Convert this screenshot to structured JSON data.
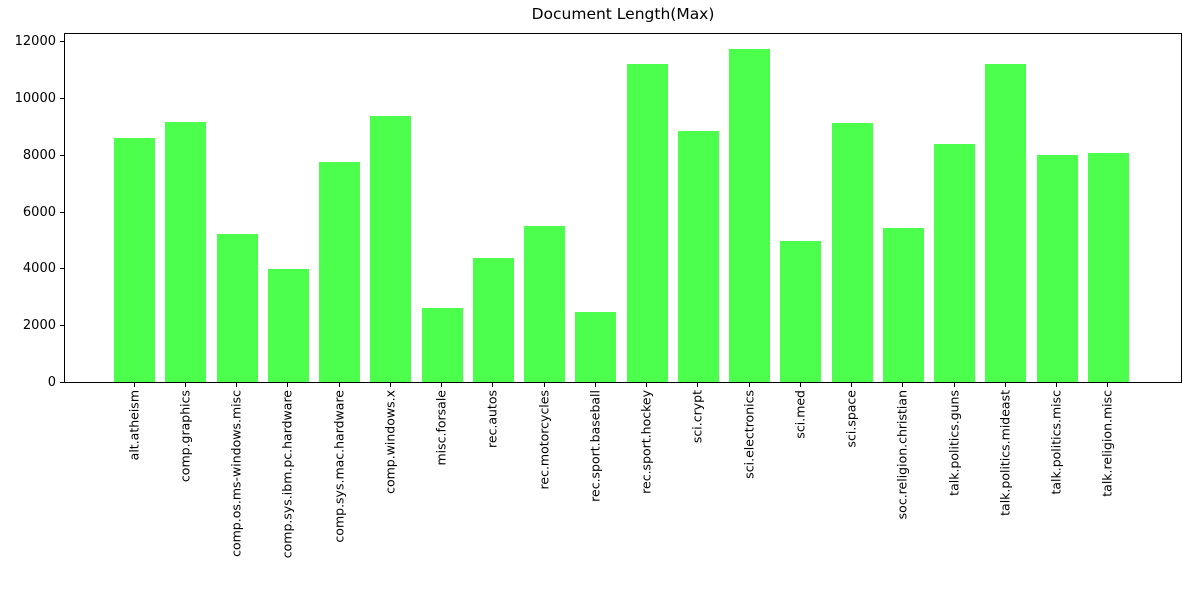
{
  "chart_data": {
    "type": "bar",
    "title": "Document Length(Max)",
    "categories": [
      "alt.atheism",
      "comp.graphics",
      "comp.os.ms-windows.misc",
      "comp.sys.ibm.pc.hardware",
      "comp.sys.mac.hardware",
      "comp.windows.x",
      "misc.forsale",
      "rec.autos",
      "rec.motorcycles",
      "rec.sport.baseball",
      "rec.sport.hockey",
      "sci.crypt",
      "sci.electronics",
      "sci.med",
      "sci.space",
      "soc.religion.christian",
      "talk.politics.guns",
      "talk.politics.mideast",
      "talk.politics.misc",
      "talk.religion.misc"
    ],
    "values": [
      8600,
      9160,
      5200,
      3980,
      7740,
      9370,
      2600,
      4360,
      5490,
      2480,
      11220,
      8840,
      11740,
      4960,
      9120,
      5410,
      8390,
      11200,
      8000,
      8060
    ],
    "xlabel": "",
    "ylabel": "",
    "ylim": [
      0,
      12330
    ],
    "yticks": [
      0,
      2000,
      4000,
      6000,
      8000,
      10000,
      12000
    ],
    "grid": false,
    "legend_position": "none",
    "bar_color": "#4dff4d",
    "axis_color": "#000000",
    "background_color": "#ffffff"
  }
}
